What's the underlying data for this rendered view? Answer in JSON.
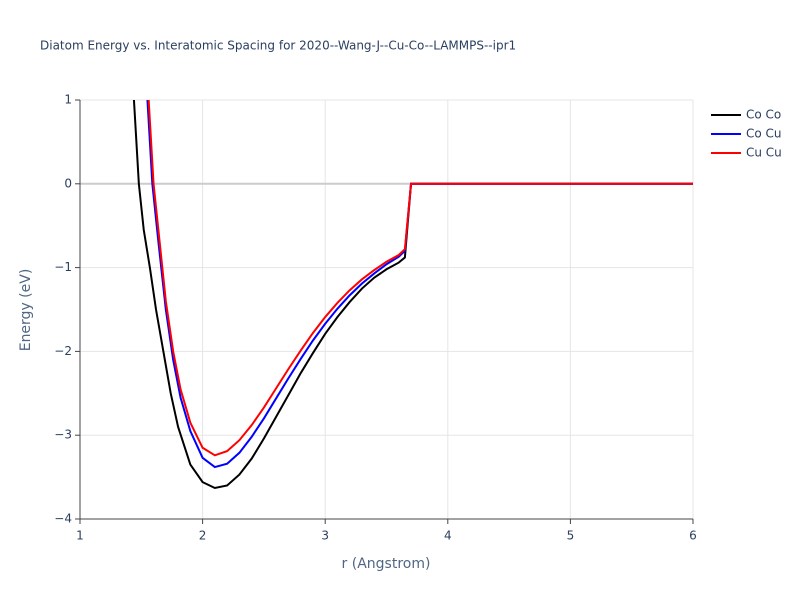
{
  "chart_data": {
    "type": "line",
    "title": "Diatom Energy vs. Interatomic Spacing for 2020--Wang-J--Cu-Co--LAMMPS--ipr1",
    "x_label": "r (Angstrom)",
    "y_label": "Energy (eV)",
    "xlim": [
      1,
      6
    ],
    "ylim": [
      -4,
      1
    ],
    "xticks": [
      1,
      2,
      3,
      4,
      5,
      6
    ],
    "yticks": [
      {
        "value": -4,
        "label": "−4"
      },
      {
        "value": -3,
        "label": "−3"
      },
      {
        "value": -2,
        "label": "−2"
      },
      {
        "value": -1,
        "label": "−1"
      },
      0,
      1
    ],
    "grid": true,
    "legend": "right",
    "series": [
      {
        "name": "Co Co",
        "color": "#000000",
        "x": [
          1.44,
          1.48,
          1.52,
          1.57,
          1.62,
          1.68,
          1.74,
          1.8,
          1.9,
          2.0,
          2.1,
          2.2,
          2.3,
          2.4,
          2.5,
          2.6,
          2.7,
          2.8,
          2.9,
          3.0,
          3.1,
          3.2,
          3.3,
          3.4,
          3.5,
          3.6,
          3.65,
          3.7,
          6
        ],
        "values": [
          1.0,
          0.0,
          -0.55,
          -1.0,
          -1.5,
          -2.0,
          -2.5,
          -2.9,
          -3.35,
          -3.56,
          -3.63,
          -3.6,
          -3.47,
          -3.28,
          -3.04,
          -2.78,
          -2.52,
          -2.26,
          -2.02,
          -1.79,
          -1.59,
          -1.41,
          -1.25,
          -1.12,
          -1.02,
          -0.94,
          -0.88,
          0,
          0
        ]
      },
      {
        "name": "Co Cu",
        "color": "#0000ff",
        "x": [
          1.55,
          1.59,
          1.64,
          1.7,
          1.76,
          1.82,
          1.9,
          2.0,
          2.1,
          2.2,
          2.3,
          2.4,
          2.5,
          2.6,
          2.7,
          2.8,
          2.9,
          3.0,
          3.1,
          3.2,
          3.3,
          3.4,
          3.5,
          3.6,
          3.65,
          3.7,
          6
        ],
        "values": [
          1.0,
          0,
          -0.7,
          -1.5,
          -2.1,
          -2.55,
          -2.95,
          -3.27,
          -3.38,
          -3.34,
          -3.21,
          -3.02,
          -2.8,
          -2.56,
          -2.32,
          -2.09,
          -1.87,
          -1.67,
          -1.49,
          -1.33,
          -1.19,
          -1.07,
          -0.96,
          -0.87,
          -0.8,
          0,
          0
        ]
      },
      {
        "name": "Cu Cu",
        "color": "#ff0000",
        "x": [
          1.56,
          1.6,
          1.65,
          1.7,
          1.76,
          1.82,
          1.9,
          2.0,
          2.1,
          2.2,
          2.3,
          2.4,
          2.5,
          2.6,
          2.7,
          2.8,
          2.9,
          3.0,
          3.1,
          3.2,
          3.3,
          3.4,
          3.5,
          3.6,
          3.65,
          3.7,
          6
        ],
        "values": [
          1.0,
          0,
          -0.7,
          -1.4,
          -2.0,
          -2.45,
          -2.85,
          -3.15,
          -3.24,
          -3.19,
          -3.06,
          -2.88,
          -2.67,
          -2.44,
          -2.21,
          -1.99,
          -1.78,
          -1.59,
          -1.42,
          -1.27,
          -1.14,
          -1.03,
          -0.93,
          -0.85,
          -0.78,
          0,
          0
        ]
      }
    ]
  }
}
